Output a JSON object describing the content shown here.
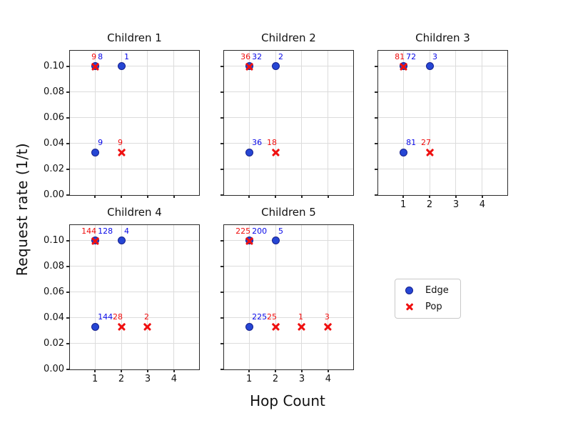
{
  "colors": {
    "edge_fill": "#2646d4",
    "edge_border": "#16208e",
    "pop": "#ef1010",
    "edge_label": "#0909e8",
    "pop_label": "#ef0d0d",
    "grid": "#dcdcdc",
    "axis": "#2b2b2b"
  },
  "chart_data": {
    "type": "scatter",
    "xlabel": "Hop Count",
    "ylabel": "Request rate (1/t)",
    "xlim": [
      0.05,
      4.95
    ],
    "ylim": [
      0,
      0.1122
    ],
    "xticks": [
      1,
      2,
      3,
      4
    ],
    "yticks": [
      {
        "value": 0.0,
        "label": "0.00"
      },
      {
        "value": 0.02,
        "label": "0.02"
      },
      {
        "value": 0.04,
        "label": "0.04"
      },
      {
        "value": 0.06,
        "label": "0.06"
      },
      {
        "value": 0.08,
        "label": "0.08"
      },
      {
        "value": 0.1,
        "label": "0.10"
      }
    ],
    "grid": true,
    "legend": {
      "position": "lower-right-cell",
      "items": [
        {
          "label": "Edge",
          "marker": "circle"
        },
        {
          "label": "Pop",
          "marker": "x"
        }
      ]
    },
    "subplots": [
      {
        "title": "Children 1",
        "show_x_ticklabels": false,
        "show_y_ticklabels": true,
        "edge": [
          {
            "x": 1,
            "y": 0.1,
            "count": "8"
          },
          {
            "x": 2,
            "y": 0.1,
            "count": "1"
          },
          {
            "x": 1,
            "y": 0.0333,
            "count": "9"
          }
        ],
        "pop": [
          {
            "x": 1,
            "y": 0.1,
            "count": "9"
          },
          {
            "x": 2,
            "y": 0.0333,
            "count": "9"
          }
        ]
      },
      {
        "title": "Children 2",
        "show_x_ticklabels": false,
        "show_y_ticklabels": false,
        "edge": [
          {
            "x": 1,
            "y": 0.1,
            "count": "32"
          },
          {
            "x": 2,
            "y": 0.1,
            "count": "2"
          },
          {
            "x": 1,
            "y": 0.0333,
            "count": "36"
          }
        ],
        "pop": [
          {
            "x": 1,
            "y": 0.1,
            "count": "36"
          },
          {
            "x": 2,
            "y": 0.0333,
            "count": "18"
          }
        ]
      },
      {
        "title": "Children 3",
        "show_x_ticklabels": true,
        "show_y_ticklabels": false,
        "edge": [
          {
            "x": 1,
            "y": 0.1,
            "count": "72"
          },
          {
            "x": 2,
            "y": 0.1,
            "count": "3"
          },
          {
            "x": 1,
            "y": 0.0333,
            "count": "81"
          }
        ],
        "pop": [
          {
            "x": 1,
            "y": 0.1,
            "count": "81"
          },
          {
            "x": 2,
            "y": 0.0333,
            "count": "27"
          }
        ]
      },
      {
        "title": "Children 4",
        "show_x_ticklabels": true,
        "show_y_ticklabels": true,
        "edge": [
          {
            "x": 1,
            "y": 0.1,
            "count": "128"
          },
          {
            "x": 2,
            "y": 0.1,
            "count": "4"
          },
          {
            "x": 1,
            "y": 0.0333,
            "count": "144"
          }
        ],
        "pop": [
          {
            "x": 1,
            "y": 0.1,
            "count": "144"
          },
          {
            "x": 2,
            "y": 0.0333,
            "count": "28"
          },
          {
            "x": 3,
            "y": 0.0333,
            "count": "2"
          }
        ]
      },
      {
        "title": "Children 5",
        "show_x_ticklabels": true,
        "show_y_ticklabels": false,
        "edge": [
          {
            "x": 1,
            "y": 0.1,
            "count": "200"
          },
          {
            "x": 2,
            "y": 0.1,
            "count": "5"
          },
          {
            "x": 1,
            "y": 0.0333,
            "count": "225"
          }
        ],
        "pop": [
          {
            "x": 1,
            "y": 0.1,
            "count": "225"
          },
          {
            "x": 2,
            "y": 0.0333,
            "count": "25"
          },
          {
            "x": 3,
            "y": 0.0333,
            "count": "1"
          },
          {
            "x": 4,
            "y": 0.0333,
            "count": "3"
          }
        ]
      }
    ]
  }
}
